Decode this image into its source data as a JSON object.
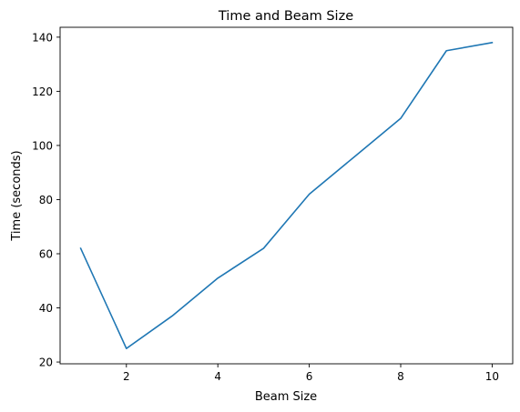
{
  "chart_data": {
    "type": "line",
    "title": "Time and Beam Size",
    "xlabel": "Beam Size",
    "ylabel": "Time (seconds)",
    "x": [
      1,
      2,
      3,
      4,
      5,
      6,
      7,
      8,
      9,
      10
    ],
    "series": [
      {
        "values": [
          62,
          25,
          37,
          51,
          62,
          82,
          96,
          110,
          135,
          138
        ],
        "color": "#1f77b4"
      }
    ],
    "xlim": [
      0.55,
      10.45
    ],
    "ylim": [
      19.35,
      143.65
    ],
    "xticks": [
      2,
      4,
      6,
      8,
      10
    ],
    "yticks": [
      20,
      40,
      60,
      80,
      100,
      120,
      140
    ],
    "grid": false
  }
}
